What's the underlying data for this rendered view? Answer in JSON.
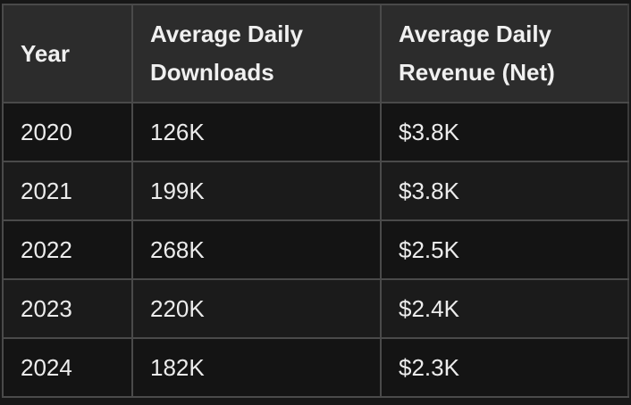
{
  "table": {
    "headers": [
      "Year",
      "Average Daily Downloads",
      "Average Daily Revenue (Net)"
    ],
    "rows": [
      [
        "2020",
        "126K",
        "$3.8K"
      ],
      [
        "2021",
        "199K",
        "$3.8K"
      ],
      [
        "2022",
        "268K",
        "$2.5K"
      ],
      [
        "2023",
        "220K",
        "$2.4K"
      ],
      [
        "2024",
        "182K",
        "$2.3K"
      ]
    ]
  }
}
